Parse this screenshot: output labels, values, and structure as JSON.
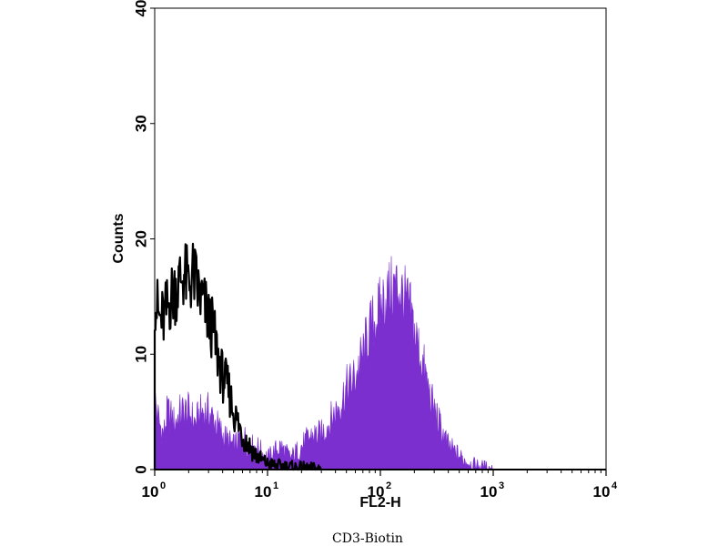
{
  "chart_data": {
    "type": "area",
    "caption": "CD3-Biotin",
    "xlabel": "FL2-H",
    "ylabel": "Counts",
    "x_scale": "log",
    "xlim": [
      1,
      10000
    ],
    "ylim": [
      0,
      40
    ],
    "x_ticks": [
      {
        "base": "10",
        "exp": "0",
        "value": 1
      },
      {
        "base": "10",
        "exp": "1",
        "value": 10
      },
      {
        "base": "10",
        "exp": "2",
        "value": 100
      },
      {
        "base": "10",
        "exp": "3",
        "value": 1000
      },
      {
        "base": "10",
        "exp": "4",
        "value": 10000
      }
    ],
    "y_ticks": [
      "0",
      "10",
      "20",
      "30",
      "40"
    ],
    "grid": false,
    "series": [
      {
        "style": "filled histogram",
        "color": "#7b2fcf",
        "points": [
          [
            1.0,
            6
          ],
          [
            1.1,
            4
          ],
          [
            1.2,
            3
          ],
          [
            1.3,
            5
          ],
          [
            1.5,
            4
          ],
          [
            1.7,
            5
          ],
          [
            2.0,
            5
          ],
          [
            2.3,
            4
          ],
          [
            2.6,
            5
          ],
          [
            3.0,
            5
          ],
          [
            3.5,
            4
          ],
          [
            4.0,
            3
          ],
          [
            5.0,
            2
          ],
          [
            6.0,
            3
          ],
          [
            7.0,
            2
          ],
          [
            8.0,
            2
          ],
          [
            10,
            1
          ],
          [
            13,
            2
          ],
          [
            16,
            1
          ],
          [
            20,
            2
          ],
          [
            25,
            3
          ],
          [
            30,
            3
          ],
          [
            35,
            4
          ],
          [
            40,
            5
          ],
          [
            45,
            6
          ],
          [
            50,
            7
          ],
          [
            60,
            8
          ],
          [
            70,
            10
          ],
          [
            80,
            12
          ],
          [
            90,
            13
          ],
          [
            100,
            14
          ],
          [
            110,
            15
          ],
          [
            125,
            15.5
          ],
          [
            140,
            16
          ],
          [
            160,
            15
          ],
          [
            180,
            14
          ],
          [
            200,
            12
          ],
          [
            240,
            9
          ],
          [
            280,
            6
          ],
          [
            330,
            4
          ],
          [
            400,
            2
          ],
          [
            500,
            1.2
          ],
          [
            600,
            0.6
          ],
          [
            800,
            0.3
          ],
          [
            1000,
            0
          ]
        ]
      },
      {
        "style": "outline histogram",
        "color": "#000000",
        "points": [
          [
            1.0,
            15
          ],
          [
            1.1,
            13
          ],
          [
            1.2,
            13
          ],
          [
            1.4,
            15
          ],
          [
            1.6,
            16
          ],
          [
            1.8,
            17
          ],
          [
            2.0,
            16
          ],
          [
            2.2,
            17
          ],
          [
            2.5,
            15
          ],
          [
            2.8,
            14
          ],
          [
            3.0,
            13
          ],
          [
            3.3,
            12
          ],
          [
            3.6,
            10
          ],
          [
            4.0,
            8
          ],
          [
            4.5,
            7
          ],
          [
            5.0,
            5
          ],
          [
            5.5,
            4
          ],
          [
            6.0,
            3
          ],
          [
            7.0,
            2
          ],
          [
            8.0,
            1.2
          ],
          [
            9.0,
            0.8
          ],
          [
            10,
            0.5
          ],
          [
            13,
            0.3
          ],
          [
            20,
            0.1
          ],
          [
            30,
            0
          ]
        ]
      }
    ]
  }
}
